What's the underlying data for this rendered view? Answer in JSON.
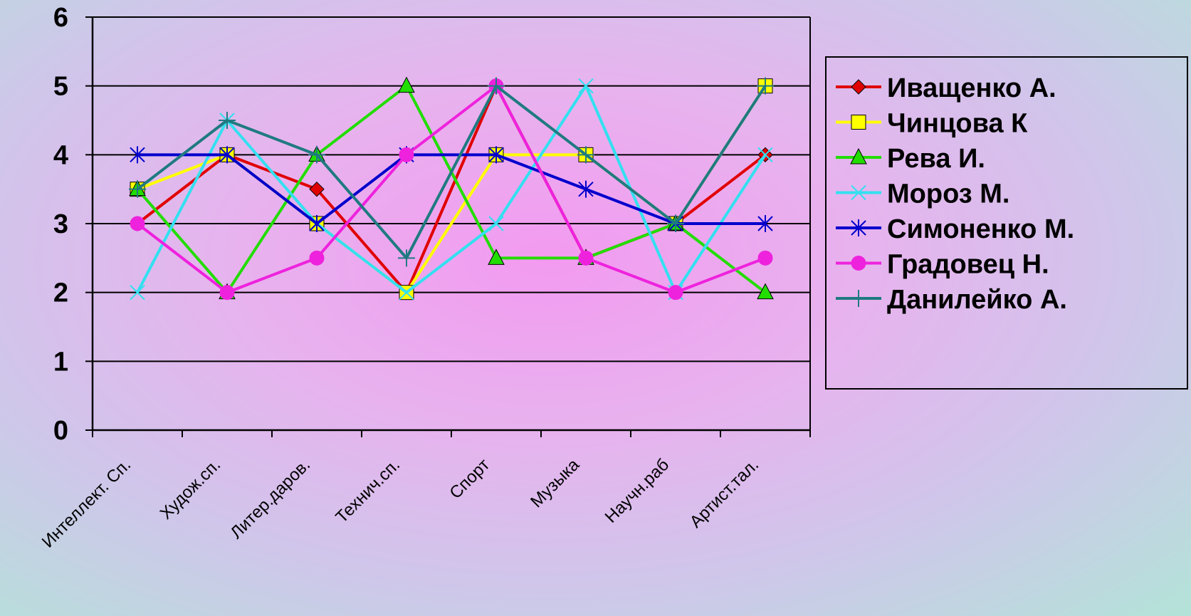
{
  "chart_data": {
    "type": "line",
    "categories": [
      "Интеллект. Сп.",
      "Худож.сп.",
      "Литер.даров.",
      "Технич.сп.",
      "Спорт",
      "Музыка",
      "Научн.раб",
      "Артист.тал."
    ],
    "ylim": [
      0,
      6
    ],
    "yticks": [
      0,
      1,
      2,
      3,
      4,
      5,
      6
    ],
    "grid": true,
    "legend_position": "right",
    "series": [
      {
        "name": "Иващенко А.",
        "color": "#e00000",
        "marker": "diamond",
        "values": [
          3,
          4,
          3.5,
          2,
          5,
          2.5,
          3,
          4
        ]
      },
      {
        "name": "Чинцова К",
        "color": "#ffff00",
        "marker": "square",
        "values": [
          3.5,
          4,
          3,
          2,
          4,
          4,
          3,
          5
        ]
      },
      {
        "name": "Рева И.",
        "color": "#22dd00",
        "marker": "triangle",
        "values": [
          3.5,
          2,
          4,
          5,
          2.5,
          2.5,
          3,
          2
        ]
      },
      {
        "name": "Мороз М.",
        "color": "#33e0f0",
        "marker": "x",
        "values": [
          2,
          4.5,
          3,
          2,
          3,
          5,
          2,
          4
        ]
      },
      {
        "name": "Симоненко М.",
        "color": "#0000cc",
        "marker": "star",
        "values": [
          4,
          4,
          3,
          4,
          4,
          3.5,
          3,
          3
        ]
      },
      {
        "name": "Градовец Н.",
        "color": "#ee22dd",
        "marker": "circle",
        "values": [
          3,
          2,
          2.5,
          4,
          5,
          2.5,
          2,
          2.5
        ]
      },
      {
        "name": "Данилейко А.",
        "color": "#1f7a80",
        "marker": "plus",
        "values": [
          3.5,
          4.5,
          4,
          2.5,
          5,
          4,
          3,
          5
        ]
      }
    ]
  }
}
